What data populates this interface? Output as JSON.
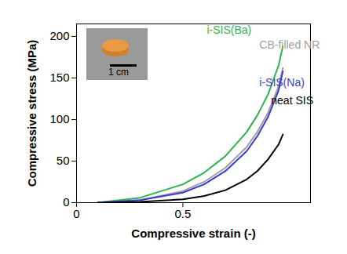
{
  "chart_data": {
    "type": "line",
    "xlabel": "Compressive strain (-)",
    "ylabel": "Compressive stress (MPa)",
    "x": [
      0.1,
      0.3,
      0.5,
      0.6,
      0.7,
      0.8,
      0.85,
      0.9,
      0.95,
      0.97
    ],
    "series": [
      {
        "name": "i-SIS(Ba)",
        "color": "#2db34a",
        "values": [
          0,
          6,
          22,
          36,
          56,
          85,
          105,
          130,
          165,
          188
        ]
      },
      {
        "name": "CB-filled NR",
        "color": "#a0a0a0",
        "values": [
          0,
          3,
          14,
          25,
          42,
          67,
          85,
          108,
          140,
          162
        ]
      },
      {
        "name": "i-SIS(Na)",
        "color": "#3c3cd2",
        "values": [
          0,
          3,
          12,
          22,
          38,
          62,
          80,
          103,
          135,
          158
        ]
      },
      {
        "name": "neat SIS",
        "color": "#000000",
        "values": [
          0,
          1,
          4,
          8,
          15,
          28,
          38,
          52,
          70,
          82
        ]
      }
    ],
    "xlim": [
      0,
      1.1
    ],
    "xticks": [
      0,
      0.5
    ],
    "ylim": [
      0,
      215
    ],
    "yticks": [
      0,
      50,
      100,
      150,
      200
    ],
    "annotations": [
      "1 cm"
    ],
    "grid": false
  }
}
